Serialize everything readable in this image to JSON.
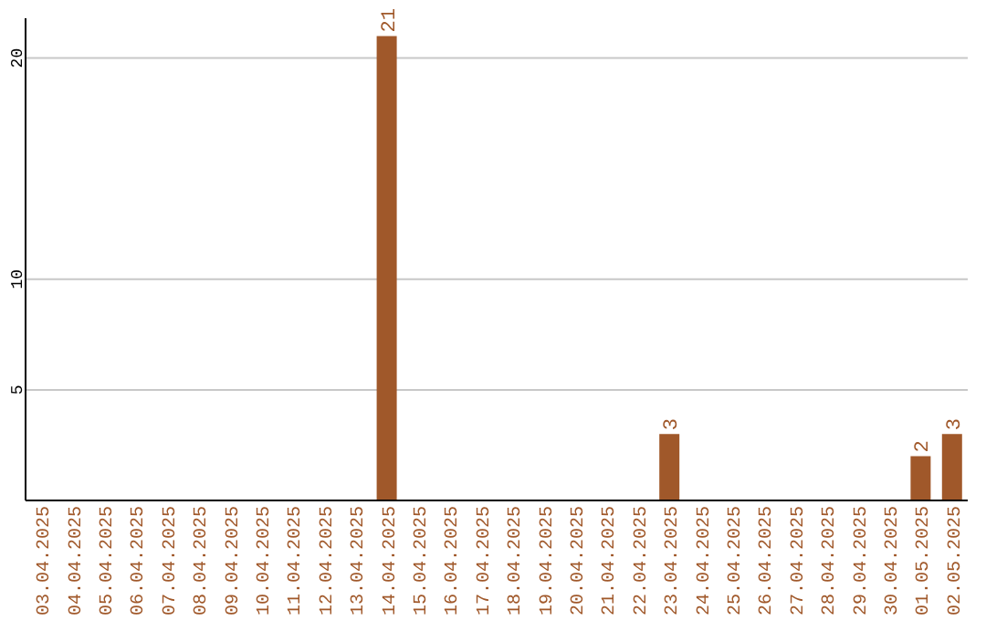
{
  "chart_data": {
    "type": "bar",
    "categories": [
      "03.04.2025",
      "04.04.2025",
      "05.04.2025",
      "06.04.2025",
      "07.04.2025",
      "08.04.2025",
      "09.04.2025",
      "10.04.2025",
      "11.04.2025",
      "12.04.2025",
      "13.04.2025",
      "14.04.2025",
      "15.04.2025",
      "16.04.2025",
      "17.04.2025",
      "18.04.2025",
      "19.04.2025",
      "20.04.2025",
      "21.04.2025",
      "22.04.2025",
      "23.04.2025",
      "24.04.2025",
      "25.04.2025",
      "26.04.2025",
      "27.04.2025",
      "28.04.2025",
      "29.04.2025",
      "30.04.2025",
      "01.05.2025",
      "02.05.2025"
    ],
    "values": [
      0,
      0,
      0,
      0,
      0,
      0,
      0,
      0,
      0,
      0,
      0,
      21,
      0,
      0,
      0,
      0,
      0,
      0,
      0,
      0,
      3,
      0,
      0,
      0,
      0,
      0,
      0,
      0,
      2,
      3
    ],
    "value_labels": [
      null,
      null,
      null,
      null,
      null,
      null,
      null,
      null,
      null,
      null,
      null,
      "21",
      null,
      null,
      null,
      null,
      null,
      null,
      null,
      null,
      "3",
      null,
      null,
      null,
      null,
      null,
      null,
      null,
      "2",
      "3"
    ],
    "color": "#a0582a",
    "ylim": [
      0,
      21.8
    ],
    "yticks": [
      5,
      10,
      20
    ],
    "grid": "y"
  }
}
